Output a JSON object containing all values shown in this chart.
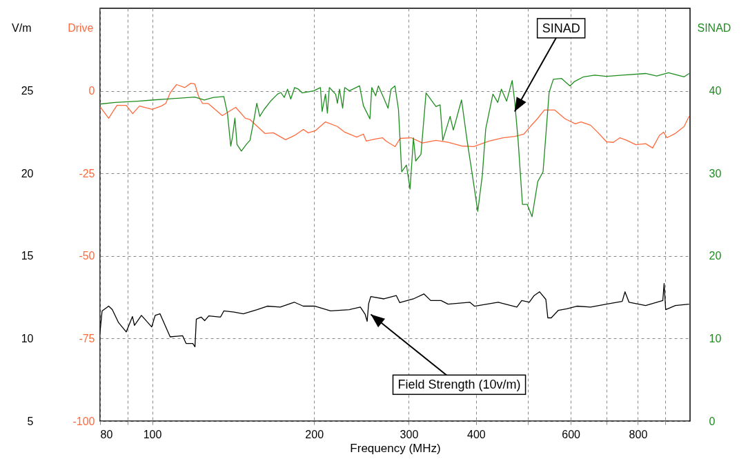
{
  "chart_data": {
    "type": "line",
    "xlabel": "Frequency (MHz)",
    "ylabel": "V/m",
    "y2label": "SINAD",
    "y3label": "Drive",
    "log": "x",
    "grid": true,
    "xlim": [
      80,
      1000
    ],
    "xticks": [
      80,
      {
        "value": 90,
        "label": null
      },
      100,
      200,
      300,
      400,
      {
        "value": 500,
        "label": null
      },
      600,
      {
        "value": 700,
        "label": null
      },
      800,
      {
        "value": 900,
        "label": null
      }
    ],
    "ylim": [
      5,
      30
    ],
    "yticks": [
      5,
      10,
      15,
      20,
      25
    ],
    "y2lim": [
      0,
      50
    ],
    "y2ticks": [
      0,
      10,
      20,
      30,
      40
    ],
    "y3lim": [
      -100,
      25
    ],
    "y3ticks": [
      -100,
      -75,
      -50,
      -25,
      0
    ],
    "series": [
      {
        "color": "#000000",
        "axis": "y",
        "x": [
          80,
          80.7,
          83,
          84.3,
          86.6,
          89.5,
          91.9,
          92.7,
          95.5,
          99.8,
          101.3,
          103.4,
          108,
          113.9,
          115.6,
          119,
          120.1,
          120.8,
          123.3,
          125.2,
          127.4,
          134,
          135.9,
          142,
          147.7,
          156.7,
          163.7,
          173,
          183.7,
          190.9,
          200.8,
          214.6,
          232.6,
          243.8,
          248.9,
          251,
          252.6,
          254.9,
          269.7,
          284.4,
          288.6,
          306,
          320,
          329.5,
          344.4,
          355,
          389.5,
          397.4,
          439.8,
          476.5,
          486.5,
          502.5,
          513,
          525,
          539.4,
          544,
          552,
          568.7,
          590,
          616,
          653.4,
          699,
          748,
          757,
          770,
          827,
          890,
          895,
          901,
          939,
          996
        ],
        "values": [
          10.4,
          11.67,
          11.96,
          11.75,
          10.96,
          10.4,
          11.33,
          10.8,
          11.4,
          10.7,
          11.4,
          11.5,
          10.1,
          10.17,
          9.7,
          9.7,
          9.5,
          11.17,
          11.3,
          11.08,
          11.37,
          11.3,
          11.67,
          11.6,
          11.5,
          11.75,
          11.96,
          11.9,
          12.2,
          11.96,
          11.96,
          11.67,
          11.75,
          11.9,
          11.46,
          11.04,
          12.1,
          12.54,
          12.4,
          12.6,
          12.17,
          12.4,
          12.7,
          12.3,
          12.3,
          12.08,
          12.2,
          11.96,
          12.2,
          11.9,
          12.3,
          12.2,
          12.6,
          12.83,
          12.37,
          11.25,
          11.25,
          11.7,
          11.8,
          11.96,
          11.9,
          12.08,
          12.25,
          12.83,
          12.2,
          12.0,
          12.3,
          13.33,
          11.75,
          12.0,
          12.08
        ]
      },
      {
        "color": "#ff6a3d",
        "axis": "y3",
        "x": [
          80,
          83,
          86,
          89.5,
          92,
          94.7,
          100,
          104,
          106,
          108,
          111,
          115,
          118,
          120,
          122,
          124,
          127,
          135,
          143,
          149,
          152,
          162,
          168,
          177,
          184,
          191,
          195,
          201,
          210,
          221,
          228,
          240,
          247,
          250,
          260,
          268,
          272,
          283,
          289,
          303,
          318,
          337,
          355,
          376,
          396,
          423,
          449,
          472,
          491,
          506,
          520,
          536,
          560,
          586,
          612,
          627,
          653,
          673,
          699,
          720,
          741,
          763,
          793,
          827,
          852,
          877,
          893,
          906,
          939,
          975,
          996
        ],
        "values": [
          -4.8,
          -8.3,
          -4.4,
          -4.4,
          -6.9,
          -4.6,
          -5.6,
          -4.6,
          -3.8,
          -0.6,
          1.9,
          1.0,
          2.3,
          2.1,
          -1.7,
          -3.8,
          -3.8,
          -7.5,
          -5.0,
          -8.3,
          -8.7,
          -12.9,
          -12.7,
          -14.8,
          -13.5,
          -11.7,
          -12.7,
          -12.1,
          -9.4,
          -10.8,
          -12.5,
          -14.0,
          -13.1,
          -15.2,
          -14.6,
          -14.2,
          -15.2,
          -16.9,
          -14.4,
          -14.2,
          -15.8,
          -15.0,
          -15.6,
          -16.7,
          -16.9,
          -15.2,
          -14.2,
          -13.8,
          -13.1,
          -10.6,
          -8.5,
          -5.8,
          -5.8,
          -8.5,
          -10.0,
          -9.4,
          -10.4,
          -12.5,
          -15.4,
          -15.6,
          -14.2,
          -15.0,
          -16.3,
          -16.0,
          -17.3,
          -13.5,
          -12.5,
          -14.2,
          -12.9,
          -10.8,
          -7.7
        ]
      },
      {
        "color": "#1f8c1f",
        "axis": "y2",
        "x": [
          80,
          85.4,
          94,
          100.7,
          105.8,
          120,
          125,
          130,
          135.9,
          138,
          140,
          141,
          142.5,
          143.8,
          146.5,
          150,
          152,
          155,
          156.5,
          158.5,
          161.5,
          166,
          171,
          173.5,
          176,
          178.5,
          181,
          184,
          187,
          190,
          199.6,
          205.5,
          207,
          210,
          211.7,
          213.5,
          219.3,
          221,
          223,
          226,
          228,
          232.6,
          243,
          247,
          254,
          256,
          260.3,
          263.4,
          270,
          274.5,
          278,
          282.7,
          287,
          291,
          297,
          301.6,
          306,
          309,
          316,
          323,
          337,
          343,
          347,
          358,
          363,
          376,
          385,
          393,
          403,
          411,
          417,
          430,
          439,
          446,
          456,
          467,
          472,
          479,
          488,
          498,
          508.5,
          521,
          533,
          547,
          557,
          577,
          598,
          609,
          634,
          665,
          699,
          748,
          827,
          867,
          912,
          975,
          996
        ],
        "values": [
          38.4,
          38.6,
          38.75,
          38.9,
          39.0,
          39.25,
          38.9,
          39.2,
          39.3,
          37.3,
          33.3,
          34.4,
          36.7,
          33.5,
          32.7,
          33.6,
          34.0,
          36.9,
          38.5,
          36.9,
          37.75,
          38.75,
          39.6,
          39.8,
          39.2,
          40.2,
          39.0,
          40.4,
          40.2,
          39.75,
          40.0,
          40.4,
          37.5,
          39.6,
          37.3,
          40.4,
          39.6,
          38.5,
          40.2,
          37.9,
          40.4,
          40.0,
          40.6,
          38.2,
          36.6,
          40.4,
          39.4,
          40.6,
          39.0,
          37.9,
          40.2,
          40.6,
          37.75,
          30.2,
          31.0,
          28.1,
          34.3,
          31.5,
          32.3,
          39.75,
          38.1,
          38.3,
          34.0,
          36.9,
          35.25,
          38.9,
          34.0,
          30.2,
          25.4,
          29.8,
          35.4,
          39.6,
          38.6,
          40.2,
          38.75,
          41.25,
          38.75,
          34.0,
          26.25,
          26.25,
          24.75,
          29.0,
          30.2,
          39.8,
          41.4,
          41.5,
          40.6,
          41.1,
          41.7,
          41.9,
          41.75,
          41.9,
          42.1,
          41.8,
          42.2,
          41.7,
          42.1
        ]
      }
    ],
    "annotations": [
      {
        "text": "SINAD",
        "x": 472,
        "y": 23.75
      },
      {
        "text": "Field Strength (10v/m)",
        "x": 255,
        "y": 11.46
      }
    ]
  }
}
